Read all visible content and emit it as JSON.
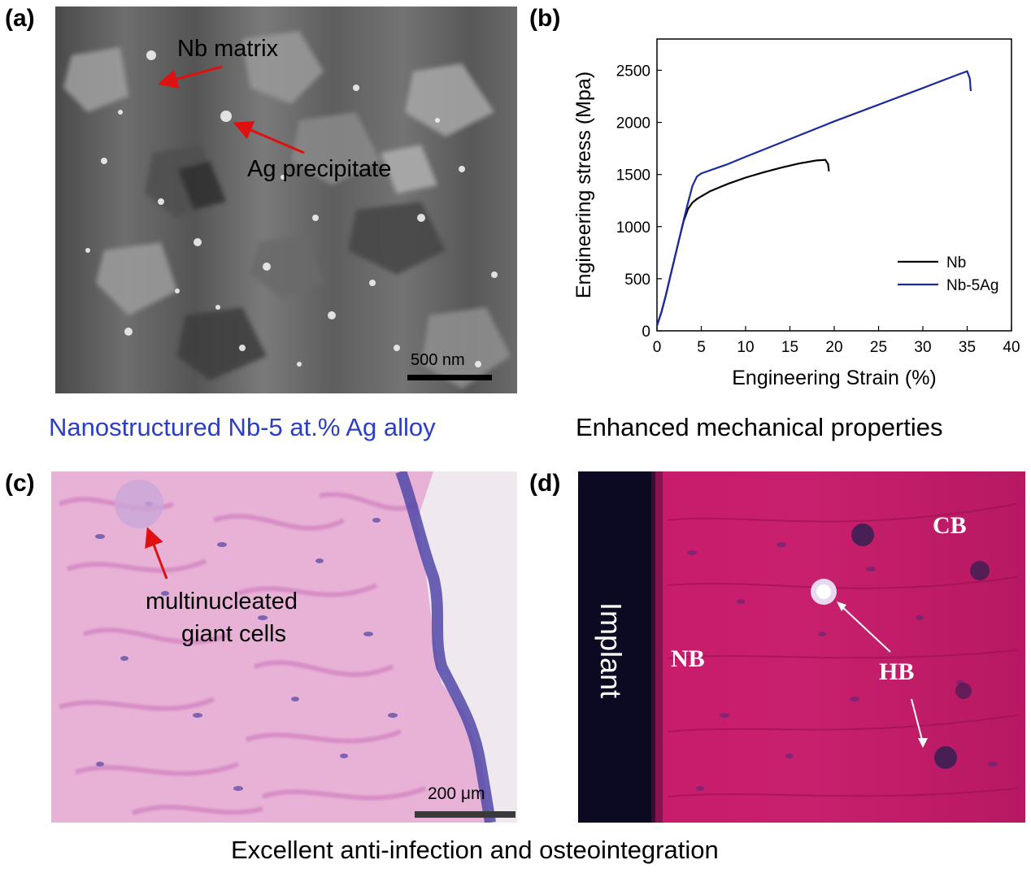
{
  "panels": {
    "a": {
      "label": "(a)",
      "annotations": {
        "matrix": "Nb matrix",
        "precipitate": "Ag precipitate"
      },
      "scale_bar": "500 nm",
      "caption": "Nanostructured Nb-5 at.% Ag alloy",
      "caption_color": "#2a3fc4"
    },
    "b": {
      "label": "(b)",
      "caption": "Enhanced mechanical properties"
    },
    "c": {
      "label": "(c)",
      "annotation_line1": "multinucleated",
      "annotation_line2": "giant cells",
      "scale_bar": "200 μm"
    },
    "d": {
      "label": "(d)",
      "labels": {
        "implant": "Implant",
        "nb": "NB",
        "cb": "CB",
        "hb": "HB"
      }
    },
    "bottom_caption": "Excellent anti-infection and osteointegration"
  },
  "chart_data": {
    "type": "line",
    "xlabel": "Engineering Strain (%)",
    "ylabel": "Engineering stress (Mpa)",
    "xlim": [
      0,
      40
    ],
    "ylim": [
      0,
      2800
    ],
    "xticks": [
      0,
      5,
      10,
      15,
      20,
      25,
      30,
      35,
      40
    ],
    "yticks": [
      0,
      500,
      1000,
      1500,
      2000,
      2500
    ],
    "legend_position": "bottom-right",
    "series": [
      {
        "name": "Nb",
        "color": "#000000",
        "x": [
          0,
          0.5,
          1,
          1.5,
          2,
          2.5,
          3,
          3.5,
          4,
          4.5,
          5,
          6,
          8,
          10,
          12,
          14,
          16,
          18,
          19,
          19.3,
          19.4
        ],
        "y": [
          50,
          180,
          340,
          520,
          700,
          880,
          1050,
          1170,
          1230,
          1265,
          1290,
          1340,
          1410,
          1470,
          1520,
          1565,
          1605,
          1635,
          1640,
          1600,
          1530
        ]
      },
      {
        "name": "Nb-5Ag",
        "color": "#1a2aa0",
        "x": [
          0,
          0.5,
          1,
          1.5,
          2,
          2.5,
          3,
          3.5,
          4,
          4.5,
          5,
          6,
          8,
          10,
          15,
          20,
          25,
          30,
          34,
          35,
          35.3,
          35.4
        ],
        "y": [
          50,
          180,
          340,
          520,
          700,
          880,
          1060,
          1230,
          1390,
          1480,
          1510,
          1540,
          1600,
          1670,
          1840,
          2010,
          2170,
          2330,
          2460,
          2490,
          2420,
          2300
        ]
      }
    ]
  }
}
